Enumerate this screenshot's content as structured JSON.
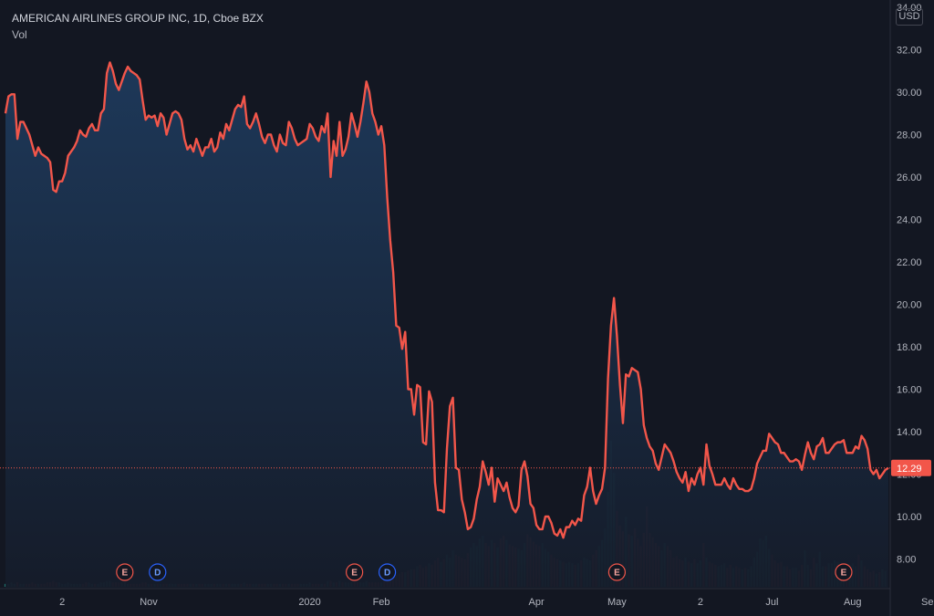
{
  "header": {
    "title": "AMERICAN AIRLINES GROUP INC, 1D, Cboe BZX",
    "volume_label": "Vol",
    "currency": "USD"
  },
  "colors": {
    "background": "#131722",
    "line": "#f2564a",
    "area_top": "#1e3a5c",
    "area_bottom": "#151c2a",
    "volume_up": "#1f6e69",
    "volume_down": "#8a2f33",
    "price_tag": "#f2564a",
    "earnings": "#f2564a",
    "dividend": "#2962ff"
  },
  "chart_data": {
    "type": "area",
    "title": "AMERICAN AIRLINES GROUP INC, 1D, Cboe BZX",
    "ylabel": "",
    "xlabel": "",
    "ylim": [
      7.0,
      34.0
    ],
    "y_ticks": [
      "34.00",
      "32.00",
      "30.00",
      "28.00",
      "26.00",
      "24.00",
      "22.00",
      "20.00",
      "18.00",
      "16.00",
      "14.00",
      "12.00",
      "10.00",
      "8.00"
    ],
    "x_tick_labels": [
      {
        "label": "2",
        "index": 19
      },
      {
        "label": "Nov",
        "index": 48
      },
      {
        "label": "2020",
        "index": 102
      },
      {
        "label": "Feb",
        "index": 126
      },
      {
        "label": "Apr",
        "index": 178
      },
      {
        "label": "May",
        "index": 205
      },
      {
        "label": "2",
        "index": 233
      },
      {
        "label": "Jul",
        "index": 257
      },
      {
        "label": "Aug",
        "index": 284
      },
      {
        "label": "Sep",
        "index": 310
      }
    ],
    "last_price": 12.29,
    "last_price_label": "12.29",
    "series": [
      {
        "values": [
          29.0,
          29.8,
          29.9,
          29.9,
          27.8,
          28.6,
          28.6,
          28.3,
          28.0,
          27.5,
          27.0,
          27.4,
          27.1,
          27.0,
          26.9,
          26.7,
          25.4,
          25.3,
          25.8,
          25.8,
          26.2,
          27.0,
          27.2,
          27.4,
          27.7,
          28.2,
          28.0,
          27.9,
          28.3,
          28.5,
          28.2,
          28.2,
          29.0,
          29.2,
          30.9,
          31.4,
          31.0,
          30.4,
          30.1,
          30.5,
          30.9,
          31.2,
          31.0,
          30.9,
          30.8,
          30.6,
          29.6,
          28.7,
          28.9,
          28.8,
          28.9,
          28.4,
          29.0,
          28.8,
          28.0,
          28.5,
          29.0,
          29.1,
          29.0,
          28.7,
          27.8,
          27.3,
          27.5,
          27.2,
          27.8,
          27.4,
          27.0,
          27.4,
          27.4,
          27.8,
          27.2,
          27.4,
          28.1,
          27.8,
          28.5,
          28.2,
          28.7,
          29.2,
          29.4,
          29.3,
          29.8,
          28.5,
          28.3,
          28.6,
          29.0,
          28.5,
          27.9,
          27.6,
          28.0,
          28.0,
          27.5,
          27.2,
          28.0,
          27.6,
          27.5,
          28.6,
          28.3,
          27.8,
          27.5,
          27.6,
          27.7,
          27.8,
          28.5,
          28.3,
          27.9,
          27.7,
          28.4,
          28.1,
          29.0,
          26.0,
          27.7,
          27.0,
          28.6,
          27.0,
          27.3,
          27.9,
          29.0,
          28.5,
          27.9,
          28.6,
          29.5,
          30.5,
          30.0,
          29.0,
          28.6,
          28.0,
          28.4,
          27.5,
          25.0,
          23.0,
          21.5,
          19.0,
          18.9,
          17.9,
          18.7,
          16.0,
          16.0,
          14.8,
          16.2,
          16.1,
          13.5,
          13.4,
          15.9,
          15.4,
          11.6,
          10.3,
          10.3,
          10.2,
          13.2,
          15.2,
          15.6,
          12.3,
          12.2,
          10.8,
          10.2,
          9.4,
          9.5,
          9.9,
          10.8,
          11.4,
          12.6,
          12.1,
          11.5,
          12.3,
          10.7,
          11.8,
          11.5,
          11.2,
          11.6,
          10.9,
          10.4,
          10.2,
          10.5,
          12.2,
          12.6,
          11.9,
          10.6,
          10.4,
          9.6,
          9.4,
          9.4,
          10.0,
          10.0,
          9.7,
          9.2,
          9.1,
          9.4,
          9.0,
          9.5,
          9.5,
          9.8,
          9.6,
          9.9,
          9.8,
          11.0,
          11.4,
          12.3,
          11.2,
          10.6,
          11.0,
          11.3,
          12.3,
          16.5,
          19.0,
          20.3,
          18.5,
          16.2,
          14.4,
          16.7,
          16.6,
          17.0,
          16.9,
          16.8,
          16.0,
          14.3,
          13.7,
          13.3,
          13.1,
          12.5,
          12.2,
          12.8,
          13.4,
          13.2,
          13.0,
          12.6,
          12.1,
          11.8,
          11.6,
          12.1,
          11.2,
          11.8,
          11.5,
          12.0,
          12.3,
          11.5,
          13.4,
          12.4,
          12.0,
          11.5,
          11.5,
          11.5,
          11.8,
          11.5,
          11.3,
          11.8,
          11.5,
          11.3,
          11.3,
          11.2,
          11.2,
          11.3,
          11.8,
          12.5,
          12.8,
          13.1,
          13.1,
          13.9,
          13.7,
          13.5,
          13.4,
          13.0,
          13.0,
          12.8,
          12.6,
          12.6,
          12.7,
          12.6,
          12.2,
          12.9,
          13.5,
          13.0,
          12.7,
          13.3,
          13.4,
          13.7,
          13.0,
          13.0,
          13.2,
          13.4,
          13.5,
          13.5,
          13.6,
          13.0,
          13.0,
          13.0,
          13.3,
          13.2,
          13.8,
          13.6,
          13.2,
          12.2,
          12.0,
          12.2,
          11.8,
          12.0,
          12.2,
          12.29
        ]
      }
    ],
    "volume": {
      "description_scale": "relative bar heights 0-1",
      "values": [
        0.02,
        0.02,
        0.03,
        0.02,
        0.03,
        0.02,
        0.02,
        0.02,
        0.02,
        0.03,
        0.02,
        0.02,
        0.02,
        0.02,
        0.03,
        0.03,
        0.04,
        0.03,
        0.03,
        0.02,
        0.02,
        0.03,
        0.02,
        0.02,
        0.02,
        0.02,
        0.02,
        0.03,
        0.03,
        0.02,
        0.02,
        0.02,
        0.03,
        0.03,
        0.04,
        0.04,
        0.03,
        0.03,
        0.03,
        0.03,
        0.03,
        0.02,
        0.02,
        0.02,
        0.02,
        0.02,
        0.03,
        0.03,
        0.02,
        0.02,
        0.02,
        0.02,
        0.02,
        0.02,
        0.02,
        0.02,
        0.02,
        0.02,
        0.02,
        0.02,
        0.02,
        0.02,
        0.02,
        0.02,
        0.02,
        0.02,
        0.02,
        0.02,
        0.02,
        0.02,
        0.02,
        0.02,
        0.02,
        0.02,
        0.02,
        0.02,
        0.02,
        0.02,
        0.02,
        0.02,
        0.03,
        0.02,
        0.02,
        0.02,
        0.02,
        0.02,
        0.02,
        0.02,
        0.02,
        0.02,
        0.02,
        0.02,
        0.02,
        0.02,
        0.02,
        0.02,
        0.02,
        0.02,
        0.02,
        0.02,
        0.02,
        0.02,
        0.03,
        0.02,
        0.02,
        0.02,
        0.02,
        0.02,
        0.04,
        0.04,
        0.03,
        0.03,
        0.04,
        0.03,
        0.03,
        0.03,
        0.03,
        0.03,
        0.03,
        0.03,
        0.03,
        0.04,
        0.03,
        0.03,
        0.03,
        0.03,
        0.03,
        0.04,
        0.04,
        0.05,
        0.06,
        0.08,
        0.09,
        0.1,
        0.1,
        0.11,
        0.12,
        0.12,
        0.14,
        0.15,
        0.13,
        0.14,
        0.16,
        0.15,
        0.18,
        0.2,
        0.17,
        0.19,
        0.22,
        0.2,
        0.25,
        0.22,
        0.21,
        0.2,
        0.19,
        0.23,
        0.27,
        0.3,
        0.28,
        0.33,
        0.35,
        0.3,
        0.28,
        0.32,
        0.3,
        0.27,
        0.33,
        0.35,
        0.32,
        0.29,
        0.28,
        0.27,
        0.26,
        0.25,
        0.3,
        0.36,
        0.34,
        0.31,
        0.29,
        0.28,
        0.3,
        0.26,
        0.24,
        0.22,
        0.2,
        0.19,
        0.18,
        0.17,
        0.16,
        0.17,
        0.16,
        0.15,
        0.16,
        0.18,
        0.2,
        0.19,
        0.18,
        0.22,
        0.25,
        0.28,
        0.32,
        0.4,
        0.65,
        1.0,
        0.78,
        0.52,
        0.42,
        0.38,
        0.48,
        0.36,
        0.35,
        0.4,
        0.33,
        0.28,
        0.37,
        0.55,
        0.37,
        0.34,
        0.3,
        0.28,
        0.25,
        0.3,
        0.28,
        0.25,
        0.2,
        0.21,
        0.19,
        0.18,
        0.2,
        0.17,
        0.16,
        0.19,
        0.16,
        0.18,
        0.3,
        0.2,
        0.17,
        0.16,
        0.15,
        0.14,
        0.15,
        0.16,
        0.13,
        0.15,
        0.13,
        0.14,
        0.13,
        0.12,
        0.13,
        0.12,
        0.14,
        0.2,
        0.24,
        0.33,
        0.32,
        0.35,
        0.26,
        0.22,
        0.18,
        0.16,
        0.17,
        0.14,
        0.14,
        0.12,
        0.13,
        0.13,
        0.11,
        0.15,
        0.25,
        0.15,
        0.12,
        0.2,
        0.16,
        0.24,
        0.14,
        0.14,
        0.16,
        0.16,
        0.18,
        0.17,
        0.16,
        0.13,
        0.15,
        0.13,
        0.16,
        0.14,
        0.22,
        0.18,
        0.14,
        0.12,
        0.1,
        0.11,
        0.09,
        0.1,
        0.12,
        0.11
      ]
    },
    "events": [
      {
        "type": "E",
        "index": 40
      },
      {
        "type": "D",
        "index": 51
      },
      {
        "type": "E",
        "index": 117
      },
      {
        "type": "D",
        "index": 128
      },
      {
        "type": "E",
        "index": 205
      },
      {
        "type": "E",
        "index": 281
      }
    ]
  }
}
